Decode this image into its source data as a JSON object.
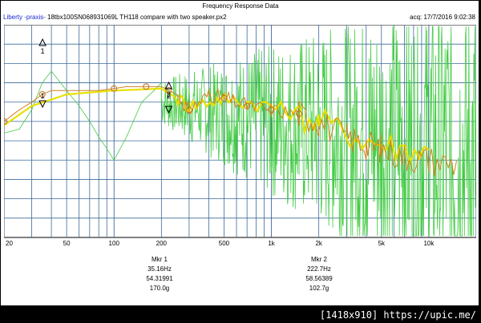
{
  "window": {
    "title": "Frequency Response Data",
    "brand": "Liberty -praxis-",
    "file": "18tbx100SN068931069L TH118 compare with two speaker.px2",
    "acq": "acq: 17/7/2016 9:02:38"
  },
  "chart_data": {
    "type": "line",
    "xscale": "log",
    "xlim": [
      20,
      20000
    ],
    "x_tick_labels": [
      "20",
      "50",
      "100",
      "200",
      "500",
      "1k",
      "2k",
      "5k",
      "10k"
    ],
    "x_tick_values": [
      20,
      50,
      100,
      200,
      500,
      1000,
      2000,
      5000,
      10000
    ],
    "grid": true,
    "series": [
      {
        "color": "#d08020",
        "values": [
          [
            20,
            50
          ],
          [
            25,
            53
          ],
          [
            30,
            55
          ],
          [
            35,
            57
          ],
          [
            40,
            58
          ],
          [
            50,
            58
          ],
          [
            60,
            58
          ],
          [
            70,
            58
          ],
          [
            80,
            58
          ],
          [
            100,
            58.5
          ],
          [
            120,
            59
          ],
          [
            150,
            59
          ],
          [
            180,
            59
          ],
          [
            200,
            59
          ],
          [
            250,
            57
          ],
          [
            300,
            53
          ],
          [
            400,
            57
          ],
          [
            500,
            56
          ],
          [
            700,
            54
          ],
          [
            1000,
            53
          ],
          [
            1500,
            52
          ],
          [
            2000,
            50
          ],
          [
            3000,
            46
          ],
          [
            4000,
            44
          ],
          [
            5000,
            43
          ],
          [
            7000,
            41
          ],
          [
            10000,
            40
          ],
          [
            15000,
            39
          ]
        ]
      },
      {
        "color": "#e8e000",
        "values": [
          [
            20,
            49
          ],
          [
            30,
            54
          ],
          [
            50,
            57
          ],
          [
            100,
            58
          ],
          [
            200,
            58.5
          ],
          [
            300,
            54
          ],
          [
            500,
            56
          ],
          [
            1000,
            54
          ],
          [
            2000,
            50
          ],
          [
            5000,
            44
          ],
          [
            10000,
            42
          ]
        ]
      },
      {
        "color": "#44cc44",
        "description_free": true,
        "values": [
          [
            20,
            47
          ],
          [
            25,
            48
          ],
          [
            30,
            53
          ],
          [
            35,
            60
          ],
          [
            40,
            63
          ],
          [
            50,
            58
          ],
          [
            60,
            54
          ],
          [
            70,
            50
          ],
          [
            80,
            46
          ],
          [
            90,
            43
          ],
          [
            100,
            40
          ],
          [
            120,
            46
          ],
          [
            150,
            55
          ],
          [
            180,
            58
          ],
          [
            200,
            60
          ]
        ]
      }
    ],
    "markers": [
      {
        "label": "Mkr 1",
        "freq": "35.16Hz",
        "value": "54.31991",
        "phase": "170.0g"
      },
      {
        "label": "Mkr 2",
        "freq": "222.7Hz",
        "value": "58.56389",
        "phase": "102.7g"
      }
    ],
    "marker_tags": [
      "1",
      "2"
    ]
  },
  "watermark": "[1418x910] https://upic.me/"
}
